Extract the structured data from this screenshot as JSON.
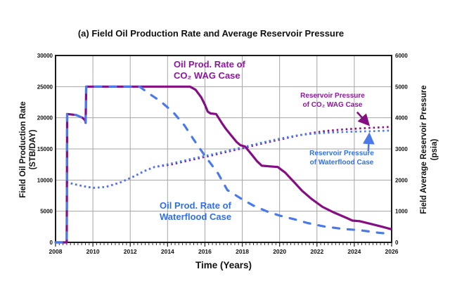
{
  "title": "(a) Field Oil Production Rate and Average Reservoir Pressure",
  "axes": {
    "x_title": "Time (Years)",
    "y_left_title_line1": "Field Oil Production Rate",
    "y_left_title_line2": "(STB/DAY)",
    "y_right_title_line1": "Field Average Reservoir Pressure",
    "y_right_title_line2": "(psia)"
  },
  "labels": {
    "co2_rate": {
      "line1": "Oil Prod. Rate of",
      "line2": "CO₂ WAG Case"
    },
    "wf_rate": {
      "line1": "Oil Prod. Rate of",
      "line2": "Waterflood Case"
    },
    "co2_press": {
      "line1": "Reservoir Pressure",
      "line2": "of CO₂ WAG Case"
    },
    "wf_press": {
      "line1": "Reservoir Pressure",
      "line2": "of Waterflood Case"
    }
  },
  "colors": {
    "purple_line": "#850E85",
    "purple_text": "#9016A0",
    "blue_line": "#4A79E9",
    "blue_text": "#2F6FE8",
    "grid": "#A6A6A6",
    "frame": "#1A1A1A",
    "tick_text": "#111111"
  },
  "chart_data": {
    "type": "line",
    "title": "(a) Field Oil Production Rate and Average Reservoir Pressure",
    "xlabel": "Time (Years)",
    "ylabel_left": "Field Oil Production Rate (STB/DAY)",
    "ylabel_right": "Field Average Reservoir Pressure (psia)",
    "grid": true,
    "legend_position": "inline-labels",
    "x_axis": {
      "range": [
        2008,
        2026
      ],
      "ticks": [
        2008,
        2010,
        2012,
        2014,
        2016,
        2018,
        2020,
        2022,
        2024,
        2026
      ],
      "minor_tick_step": 0.2
    },
    "y_left": {
      "range": [
        0,
        30000
      ],
      "ticks": [
        0,
        5000,
        10000,
        15000,
        20000,
        25000,
        30000
      ]
    },
    "y_right": {
      "range": [
        0,
        6000
      ],
      "ticks": [
        0,
        1000,
        2000,
        3000,
        4000,
        5000,
        6000
      ]
    },
    "series": [
      {
        "name": "Reservoir Pressure of CO₂ WAG Case",
        "axis": "right",
        "style": "dotted",
        "color_key": "purple_line",
        "points": [
          [
            2008.58,
            1930
          ],
          [
            2009.2,
            1840
          ],
          [
            2009.6,
            1790
          ],
          [
            2010.0,
            1750
          ],
          [
            2010.7,
            1780
          ],
          [
            2011.5,
            1930
          ],
          [
            2012.2,
            2120
          ],
          [
            2012.8,
            2300
          ],
          [
            2013.3,
            2420
          ],
          [
            2014.2,
            2500
          ],
          [
            2015.2,
            2640
          ],
          [
            2016.2,
            2770
          ],
          [
            2017.2,
            2910
          ],
          [
            2018.2,
            3050
          ],
          [
            2019.1,
            3180
          ],
          [
            2020.0,
            3300
          ],
          [
            2021.0,
            3430
          ],
          [
            2021.7,
            3510
          ],
          [
            2022.5,
            3580
          ],
          [
            2023.5,
            3630
          ],
          [
            2024.5,
            3665
          ],
          [
            2026.0,
            3710
          ]
        ]
      },
      {
        "name": "Reservoir Pressure of Waterflood Case",
        "axis": "right",
        "style": "dotted",
        "color_key": "blue_line",
        "points": [
          [
            2008.58,
            1930
          ],
          [
            2009.2,
            1840
          ],
          [
            2009.6,
            1790
          ],
          [
            2010.0,
            1750
          ],
          [
            2010.7,
            1780
          ],
          [
            2011.5,
            1930
          ],
          [
            2012.2,
            2120
          ],
          [
            2012.8,
            2300
          ],
          [
            2013.3,
            2420
          ],
          [
            2014.2,
            2530
          ],
          [
            2015.2,
            2670
          ],
          [
            2016.2,
            2800
          ],
          [
            2017.2,
            2940
          ],
          [
            2018.2,
            3080
          ],
          [
            2019.1,
            3210
          ],
          [
            2020.0,
            3330
          ],
          [
            2021.0,
            3440
          ],
          [
            2021.8,
            3490
          ],
          [
            2022.8,
            3530
          ],
          [
            2024.0,
            3555
          ],
          [
            2025.0,
            3570
          ],
          [
            2026.0,
            3590
          ]
        ]
      },
      {
        "name": "Oil Prod. Rate of CO₂ WAG Case",
        "axis": "left",
        "style": "solid",
        "color_key": "purple_line",
        "points": [
          [
            2008.0,
            0
          ],
          [
            2008.6,
            0
          ],
          [
            2008.62,
            20600
          ],
          [
            2009.1,
            20450
          ],
          [
            2009.45,
            20000
          ],
          [
            2009.58,
            19600
          ],
          [
            2009.61,
            19200
          ],
          [
            2009.64,
            25000
          ],
          [
            2015.2,
            25000
          ],
          [
            2015.5,
            24500
          ],
          [
            2015.8,
            23300
          ],
          [
            2016.0,
            22100
          ],
          [
            2016.15,
            21000
          ],
          [
            2016.3,
            20700
          ],
          [
            2016.6,
            20600
          ],
          [
            2016.9,
            19200
          ],
          [
            2017.1,
            18300
          ],
          [
            2017.4,
            17200
          ],
          [
            2017.7,
            16100
          ],
          [
            2017.9,
            15600
          ],
          [
            2018.15,
            15400
          ],
          [
            2018.45,
            14300
          ],
          [
            2018.8,
            13000
          ],
          [
            2019.05,
            12300
          ],
          [
            2019.9,
            12100
          ],
          [
            2020.3,
            11200
          ],
          [
            2020.8,
            9600
          ],
          [
            2021.2,
            8300
          ],
          [
            2021.7,
            7000
          ],
          [
            2022.3,
            5700
          ],
          [
            2022.9,
            4800
          ],
          [
            2023.6,
            3900
          ],
          [
            2023.9,
            3500
          ],
          [
            2024.3,
            3400
          ],
          [
            2024.9,
            2950
          ],
          [
            2025.5,
            2500
          ],
          [
            2026.0,
            2100
          ]
        ]
      },
      {
        "name": "Oil Prod. Rate of Waterflood Case",
        "axis": "left",
        "style": "dashed",
        "color_key": "blue_line",
        "points": [
          [
            2008.0,
            0
          ],
          [
            2008.6,
            0
          ],
          [
            2008.62,
            20600
          ],
          [
            2009.1,
            20450
          ],
          [
            2009.45,
            20000
          ],
          [
            2009.58,
            19600
          ],
          [
            2009.61,
            19200
          ],
          [
            2009.64,
            25000
          ],
          [
            2012.5,
            25000
          ],
          [
            2013.0,
            23900
          ],
          [
            2013.6,
            22700
          ],
          [
            2014.3,
            20900
          ],
          [
            2014.9,
            18800
          ],
          [
            2015.4,
            16500
          ],
          [
            2016.0,
            13900
          ],
          [
            2016.7,
            11100
          ],
          [
            2017.2,
            8400
          ],
          [
            2018.0,
            6900
          ],
          [
            2018.6,
            5900
          ],
          [
            2019.3,
            5000
          ],
          [
            2020.0,
            4300
          ],
          [
            2020.8,
            3700
          ],
          [
            2021.5,
            3100
          ],
          [
            2022.4,
            2550
          ],
          [
            2023.4,
            2150
          ],
          [
            2024.3,
            1950
          ],
          [
            2025.3,
            1550
          ],
          [
            2026.0,
            1350
          ]
        ]
      }
    ],
    "annotations": {
      "arrows": [
        {
          "from": [
            2024.15,
            4180
          ],
          "to": [
            2024.75,
            3790
          ],
          "axis": "right",
          "color_key": "purple_line",
          "name": "arrow-to-co2-pressure-line"
        },
        {
          "from": [
            2024.75,
            2930
          ],
          "to": [
            2024.8,
            3460
          ],
          "axis": "right",
          "color_key": "blue_line",
          "name": "arrow-to-waterflood-pressure-line"
        }
      ]
    }
  }
}
